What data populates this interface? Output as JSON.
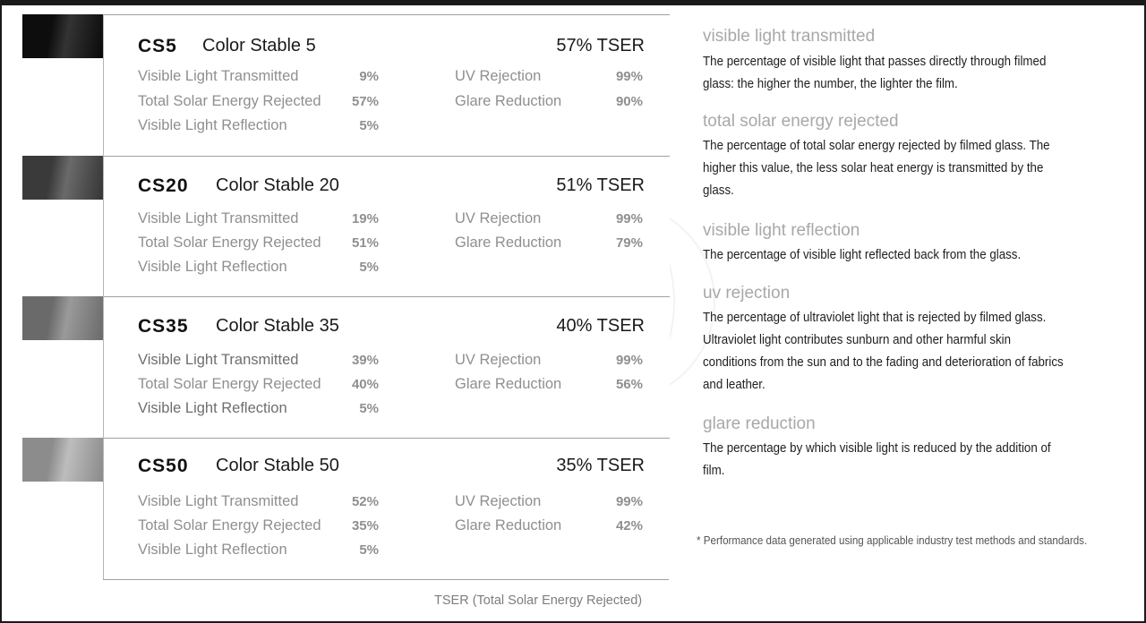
{
  "products": [
    {
      "code": "CS5",
      "name": "Color Stable 5",
      "tser": "57% TSER",
      "swatch_colors": [
        "#0d0d0d",
        "#333333",
        "#0a0a0a"
      ],
      "stats_left": [
        {
          "label": "Visible Light Transmitted",
          "value": "9%"
        },
        {
          "label": "Total Solar Energy Rejected",
          "value": "57%"
        },
        {
          "label": "Visible Light Reflection",
          "value": "5%"
        }
      ],
      "stats_right": [
        {
          "label": "UV Rejection",
          "value": "99%"
        },
        {
          "label": "Glare Reduction",
          "value": "90%"
        }
      ]
    },
    {
      "code": "CS20",
      "name": "Color Stable 20",
      "tser": "51% TSER",
      "swatch_colors": [
        "#3a3a3a",
        "#6a6a6a",
        "#353535"
      ],
      "stats_left": [
        {
          "label": "Visible Light Transmitted",
          "value": "19%"
        },
        {
          "label": "Total Solar Energy Rejected",
          "value": "51%"
        },
        {
          "label": "Visible Light Reflection",
          "value": "5%"
        }
      ],
      "stats_right": [
        {
          "label": "UV Rejection",
          "value": "99%"
        },
        {
          "label": "Glare Reduction",
          "value": "79%"
        }
      ]
    },
    {
      "code": "CS35",
      "name": "Color Stable 35",
      "tser": "40% TSER",
      "swatch_colors": [
        "#6a6a6a",
        "#9a9a9a",
        "#6a6a6a"
      ],
      "stats_left": [
        {
          "label": "Visible Light Transmitted",
          "value": "39%"
        },
        {
          "label": "Total Solar Energy Rejected",
          "value": "40%"
        },
        {
          "label": "Visible Light Reflection",
          "value": "5%"
        }
      ],
      "stats_right": [
        {
          "label": "UV Rejection",
          "value": "99%"
        },
        {
          "label": "Glare Reduction",
          "value": "56%"
        }
      ]
    },
    {
      "code": "CS50",
      "name": "Color Stable 50",
      "tser": "35% TSER",
      "swatch_colors": [
        "#8c8c8c",
        "#bdbdbd",
        "#8a8a8a"
      ],
      "stats_left": [
        {
          "label": "Visible Light Transmitted",
          "value": "52%"
        },
        {
          "label": "Total Solar Energy Rejected",
          "value": "35%"
        },
        {
          "label": "Visible Light Reflection",
          "value": "5%"
        }
      ],
      "stats_right": [
        {
          "label": "UV Rejection",
          "value": "99%"
        },
        {
          "label": "Glare Reduction",
          "value": "42%"
        }
      ]
    }
  ],
  "tser_footnote": "TSER (Total Solar Energy Rejected)",
  "definitions": [
    {
      "title": "visible light transmitted",
      "body": "The percentage of visible light that passes directly through filmed glass: the higher the number, the lighter the film."
    },
    {
      "title": "total solar energy rejected",
      "body": "The percentage of total solar energy rejected by filmed glass. The higher this value, the less solar heat energy is transmitted by the glass."
    },
    {
      "title": "visible light reflection",
      "body": "The percentage of visible light reflected back from the glass."
    },
    {
      "title": "uv rejection",
      "body": "The percentage of ultraviolet light that is rejected by filmed glass. Ultraviolet light contributes sunburn and other harmful skin conditions from the sun and to the fading and deterioration of fabrics and leather."
    },
    {
      "title": "glare reduction",
      "body": "The percentage by which visible light is reduced by the addition of film."
    }
  ],
  "performance_note": "* Performance data generated using applicable industry test methods and standards."
}
